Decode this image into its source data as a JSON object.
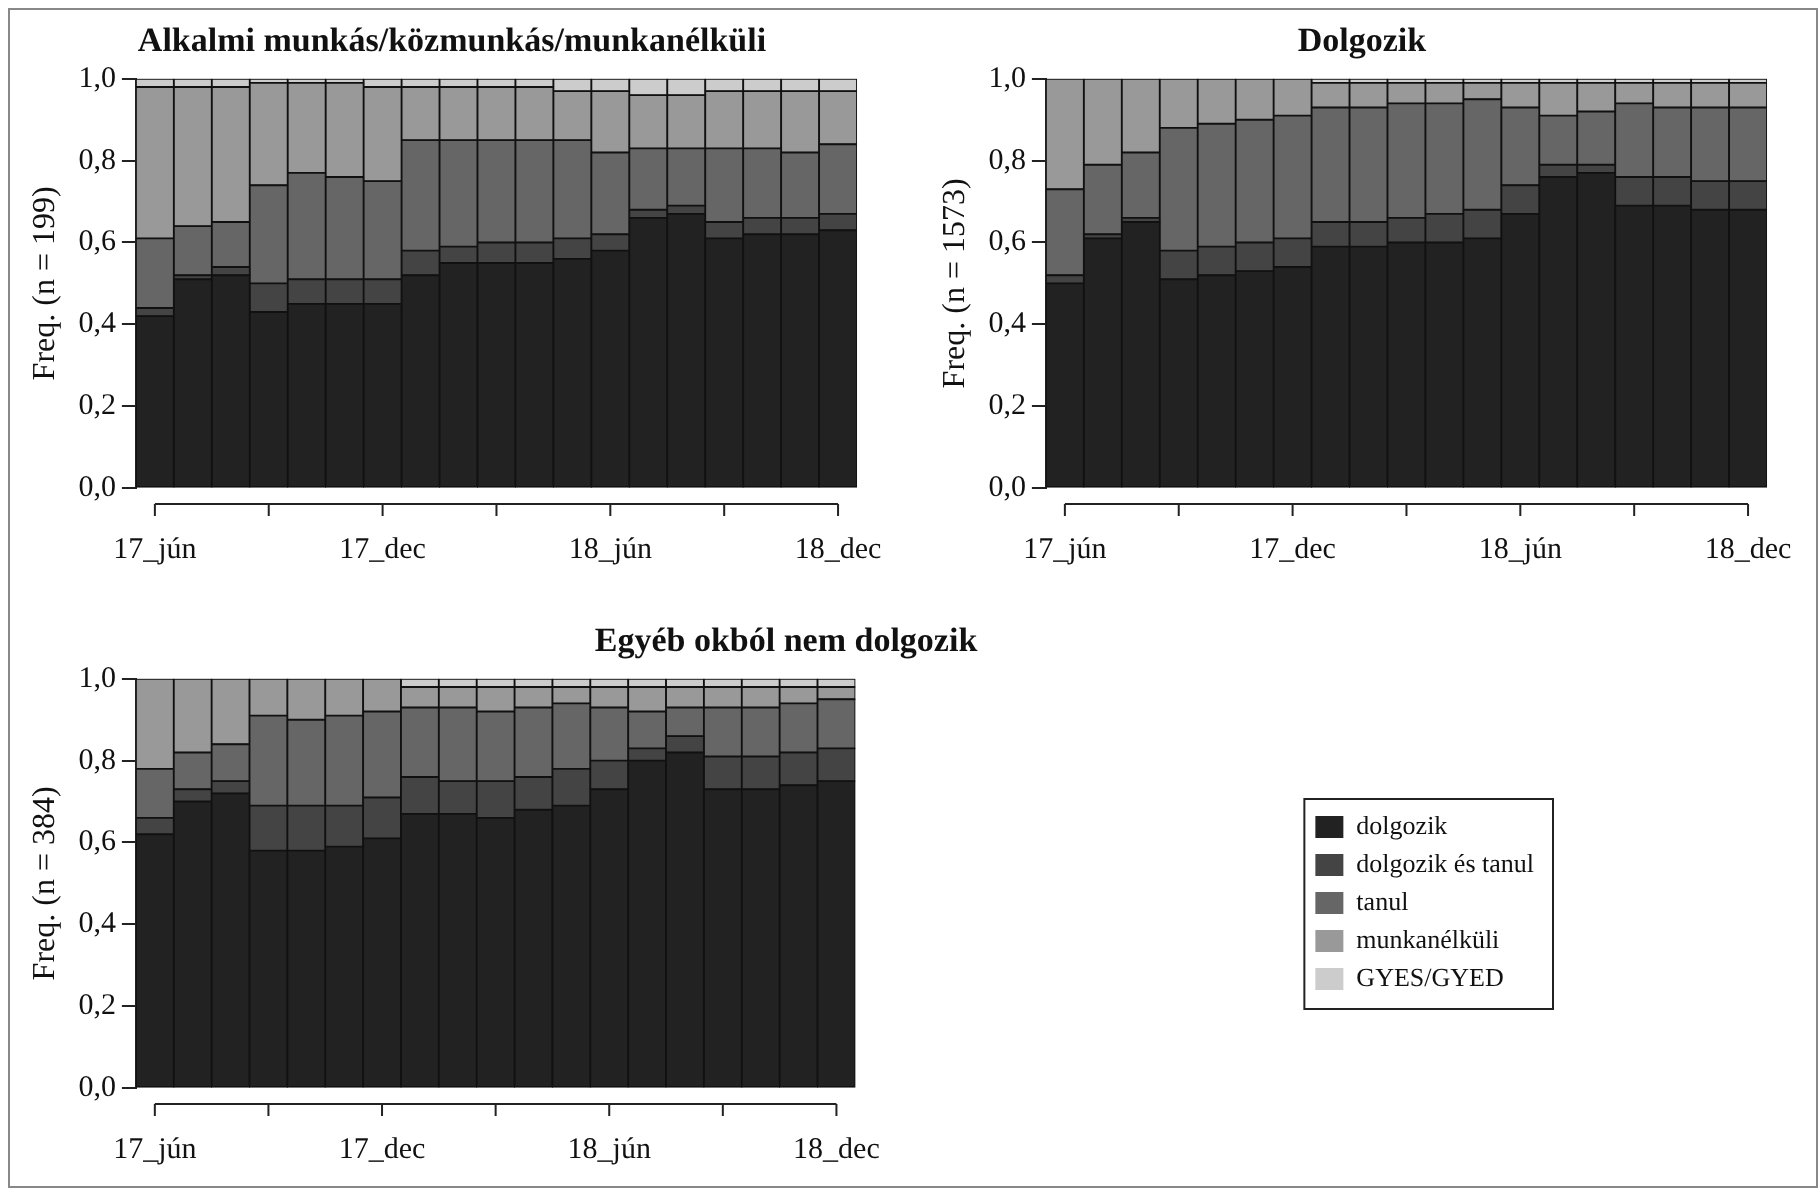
{
  "chart_data": [
    {
      "type": "bar",
      "stacked": true,
      "title": "Alkalmi munkás/közmunkás/munkanélküli",
      "ylabel": "Freq. (n = 199)",
      "categories": [
        "17_jún",
        null,
        null,
        null,
        null,
        null,
        "17_dec",
        null,
        null,
        null,
        null,
        null,
        "18_jún",
        null,
        null,
        null,
        null,
        null,
        "18_dec"
      ],
      "ylim": [
        0,
        1
      ],
      "yticks": [
        {
          "value": 0,
          "label": "0,0"
        },
        {
          "value": 0.2,
          "label": "0,2"
        },
        {
          "value": 0.4,
          "label": "0,4"
        },
        {
          "value": 0.6,
          "label": "0,6"
        },
        {
          "value": 0.8,
          "label": "0,8"
        },
        {
          "value": 1,
          "label": "1,0"
        }
      ],
      "series": [
        {
          "color": "#222222",
          "values": [
            0.42,
            0.51,
            0.52,
            0.43,
            0.45,
            0.45,
            0.45,
            0.52,
            0.55,
            0.55,
            0.55,
            0.56,
            0.58,
            0.66,
            0.67,
            0.61,
            0.62,
            0.62,
            0.63
          ]
        },
        {
          "color": "#444444",
          "values": [
            0.02,
            0.01,
            0.02,
            0.07,
            0.06,
            0.06,
            0.06,
            0.06,
            0.04,
            0.05,
            0.05,
            0.05,
            0.04,
            0.02,
            0.02,
            0.04,
            0.04,
            0.04,
            0.04
          ]
        },
        {
          "color": "#666666",
          "values": [
            0.17,
            0.12,
            0.11,
            0.24,
            0.26,
            0.25,
            0.24,
            0.27,
            0.26,
            0.25,
            0.25,
            0.24,
            0.2,
            0.15,
            0.14,
            0.18,
            0.17,
            0.16,
            0.17
          ]
        },
        {
          "color": "#999999",
          "values": [
            0.37,
            0.34,
            0.33,
            0.25,
            0.22,
            0.23,
            0.23,
            0.13,
            0.13,
            0.13,
            0.13,
            0.12,
            0.15,
            0.13,
            0.13,
            0.14,
            0.14,
            0.15,
            0.13
          ]
        },
        {
          "color": "#cccccc",
          "values": [
            0.02,
            0.02,
            0.02,
            0.01,
            0.01,
            0.01,
            0.02,
            0.02,
            0.02,
            0.02,
            0.02,
            0.03,
            0.03,
            0.04,
            0.04,
            0.03,
            0.03,
            0.03,
            0.03
          ]
        }
      ]
    },
    {
      "type": "bar",
      "stacked": true,
      "title": "Dolgozik",
      "ylabel": "Freq. (n = 1573)",
      "categories": [
        "17_jún",
        null,
        null,
        null,
        null,
        null,
        "17_dec",
        null,
        null,
        null,
        null,
        null,
        "18_jún",
        null,
        null,
        null,
        null,
        null,
        "18_dec"
      ],
      "ylim": [
        0,
        1
      ],
      "yticks": [
        {
          "value": 0,
          "label": "0,0"
        },
        {
          "value": 0.2,
          "label": "0,2"
        },
        {
          "value": 0.4,
          "label": "0,4"
        },
        {
          "value": 0.6,
          "label": "0,6"
        },
        {
          "value": 0.8,
          "label": "0,8"
        },
        {
          "value": 1,
          "label": "1,0"
        }
      ],
      "series": [
        {
          "color": "#222222",
          "values": [
            0.5,
            0.61,
            0.65,
            0.51,
            0.52,
            0.53,
            0.54,
            0.59,
            0.59,
            0.6,
            0.6,
            0.61,
            0.67,
            0.76,
            0.77,
            0.69,
            0.69,
            0.68,
            0.68
          ]
        },
        {
          "color": "#444444",
          "values": [
            0.02,
            0.01,
            0.01,
            0.07,
            0.07,
            0.07,
            0.07,
            0.06,
            0.06,
            0.06,
            0.07,
            0.07,
            0.07,
            0.03,
            0.02,
            0.07,
            0.07,
            0.07,
            0.07
          ]
        },
        {
          "color": "#666666",
          "values": [
            0.21,
            0.17,
            0.16,
            0.3,
            0.3,
            0.3,
            0.3,
            0.28,
            0.28,
            0.28,
            0.27,
            0.27,
            0.19,
            0.12,
            0.13,
            0.18,
            0.17,
            0.18,
            0.18
          ]
        },
        {
          "color": "#999999",
          "values": [
            0.27,
            0.21,
            0.18,
            0.12,
            0.11,
            0.1,
            0.09,
            0.06,
            0.06,
            0.05,
            0.05,
            0.04,
            0.06,
            0.08,
            0.07,
            0.05,
            0.06,
            0.06,
            0.06
          ]
        },
        {
          "color": "#cccccc",
          "values": [
            0,
            0,
            0,
            0,
            0,
            0,
            0,
            0.01,
            0.01,
            0.01,
            0.01,
            0.01,
            0.01,
            0.01,
            0.01,
            0.01,
            0.01,
            0.01,
            0.01
          ]
        }
      ]
    },
    {
      "type": "bar",
      "stacked": true,
      "title": "Egyéb okból nem dolgozik",
      "ylabel": "Freq. (n = 384)",
      "legend": "right",
      "categories": [
        "17_jún",
        null,
        null,
        null,
        null,
        null,
        "17_dec",
        null,
        null,
        null,
        null,
        null,
        "18_jún",
        null,
        null,
        null,
        null,
        null,
        "18_dec"
      ],
      "ylim": [
        0,
        1
      ],
      "yticks": [
        {
          "value": 0,
          "label": "0,0"
        },
        {
          "value": 0.2,
          "label": "0,2"
        },
        {
          "value": 0.4,
          "label": "0,4"
        },
        {
          "value": 0.6,
          "label": "0,6"
        },
        {
          "value": 0.8,
          "label": "0,8"
        },
        {
          "value": 1,
          "label": "1,0"
        }
      ],
      "series": [
        {
          "name": "dolgozik",
          "color": "#222222",
          "values": [
            0.62,
            0.7,
            0.72,
            0.58,
            0.58,
            0.59,
            0.61,
            0.67,
            0.67,
            0.66,
            0.68,
            0.69,
            0.73,
            0.8,
            0.82,
            0.73,
            0.73,
            0.74,
            0.75
          ]
        },
        {
          "name": "dolgozik és tanul",
          "color": "#444444",
          "values": [
            0.04,
            0.03,
            0.03,
            0.11,
            0.11,
            0.1,
            0.1,
            0.09,
            0.08,
            0.09,
            0.08,
            0.09,
            0.07,
            0.03,
            0.04,
            0.08,
            0.08,
            0.08,
            0.08
          ]
        },
        {
          "name": "tanul",
          "color": "#666666",
          "values": [
            0.12,
            0.09,
            0.09,
            0.22,
            0.21,
            0.22,
            0.21,
            0.17,
            0.18,
            0.17,
            0.17,
            0.16,
            0.13,
            0.09,
            0.07,
            0.12,
            0.12,
            0.12,
            0.12
          ]
        },
        {
          "name": "munkanélküli",
          "color": "#999999",
          "values": [
            0.22,
            0.18,
            0.16,
            0.09,
            0.1,
            0.09,
            0.08,
            0.05,
            0.05,
            0.06,
            0.05,
            0.04,
            0.05,
            0.06,
            0.05,
            0.05,
            0.05,
            0.04,
            0.03
          ]
        },
        {
          "name": "GYES/GYED",
          "color": "#cccccc",
          "values": [
            0,
            0,
            0,
            0,
            0,
            0,
            0,
            0.02,
            0.02,
            0.02,
            0.02,
            0.02,
            0.02,
            0.02,
            0.02,
            0.02,
            0.02,
            0.02,
            0.02
          ]
        }
      ]
    }
  ]
}
